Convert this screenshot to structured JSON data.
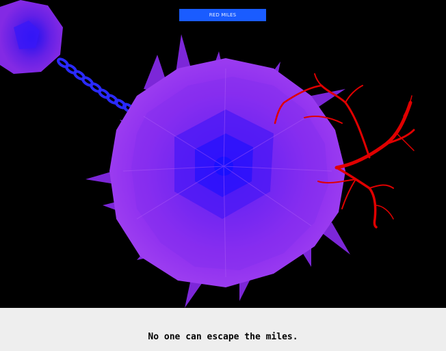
{
  "game": {
    "button_label": "RED MILES",
    "caption": "No one can escape the miles."
  },
  "colors": {
    "background": "#000000",
    "creature_core": "#1a10ff",
    "creature_fur": "#8a2cf0",
    "veins": "#e00000",
    "chain": "#2a2aff",
    "button": "#1a5cff",
    "caption_bar": "#eeeeee"
  }
}
